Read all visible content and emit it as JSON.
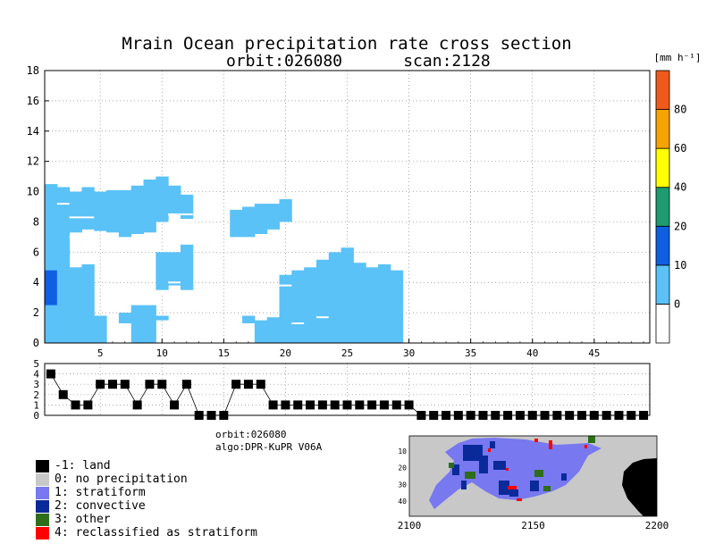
{
  "title": {
    "line1": "Mrain Ocean precipitation rate cross section",
    "line2_left": "orbit:026080",
    "line2_right": "scan:2128"
  },
  "colorbar": {
    "unit_label": "[mm h⁻¹]",
    "bins": [
      {
        "value": -10,
        "color": "#ffffff"
      },
      {
        "value": 0,
        "color": "#5ac2f7"
      },
      {
        "value": 10,
        "color": "#0e5fe2"
      },
      {
        "value": 20,
        "color": "#1e9b70"
      },
      {
        "value": 40,
        "color": "#ffff00"
      },
      {
        "value": 60,
        "color": "#f5a300"
      },
      {
        "value": 80,
        "color": "#ee5a1a"
      }
    ],
    "tick_labels": [
      "0",
      "10",
      "20",
      "40",
      "60",
      "80"
    ]
  },
  "chart_data": [
    {
      "type": "heatmap",
      "name": "precipitation cross section",
      "x_ticks": [
        "5",
        "10",
        "15",
        "20",
        "25",
        "30",
        "35",
        "40",
        "45"
      ],
      "y_ticks": [
        "0",
        "2",
        "4",
        "6",
        "8",
        "10",
        "12",
        "14",
        "16",
        "18"
      ],
      "xlim": [
        0.5,
        49.5
      ],
      "ylim": [
        0,
        18
      ],
      "grid": true,
      "cell_height": 0.25,
      "columns": [
        {
          "x": 1,
          "segments": [
            {
              "from": 0,
              "to": 10.5,
              "cls": 1
            },
            {
              "from": 2.5,
              "to": 4.8,
              "cls": 2
            }
          ]
        },
        {
          "x": 2,
          "segments": [
            {
              "from": 0,
              "to": 10.3,
              "cls": 1
            }
          ]
        },
        {
          "x": 3,
          "segments": [
            {
              "from": 0,
              "to": 5.0,
              "cls": 1
            },
            {
              "from": 7.3,
              "to": 10.0,
              "cls": 1
            }
          ]
        },
        {
          "x": 4,
          "segments": [
            {
              "from": 0,
              "to": 5.2,
              "cls": 1
            },
            {
              "from": 7.5,
              "to": 10.3,
              "cls": 1
            }
          ]
        },
        {
          "x": 5,
          "segments": [
            {
              "from": 0,
              "to": 1.8,
              "cls": 1
            },
            {
              "from": 7.4,
              "to": 10.0,
              "cls": 1
            }
          ]
        },
        {
          "x": 6,
          "segments": [
            {
              "from": 7.3,
              "to": 10.1,
              "cls": 1
            }
          ]
        },
        {
          "x": 7,
          "segments": [
            {
              "from": 1.3,
              "to": 2.0,
              "cls": 1
            },
            {
              "from": 7.0,
              "to": 10.1,
              "cls": 1
            }
          ]
        },
        {
          "x": 8,
          "segments": [
            {
              "from": 0,
              "to": 2.5,
              "cls": 1
            },
            {
              "from": 7.2,
              "to": 10.4,
              "cls": 1
            }
          ]
        },
        {
          "x": 9,
          "segments": [
            {
              "from": 0,
              "to": 2.5,
              "cls": 1
            },
            {
              "from": 7.3,
              "to": 10.8,
              "cls": 1
            }
          ]
        },
        {
          "x": 10,
          "segments": [
            {
              "from": 1.5,
              "to": 1.8,
              "cls": 1
            },
            {
              "from": 3.5,
              "to": 6.0,
              "cls": 1
            },
            {
              "from": 8.0,
              "to": 11.0,
              "cls": 1
            }
          ]
        },
        {
          "x": 11,
          "segments": [
            {
              "from": 3.8,
              "to": 6.0,
              "cls": 1
            },
            {
              "from": 8.5,
              "to": 10.4,
              "cls": 1
            }
          ]
        },
        {
          "x": 12,
          "segments": [
            {
              "from": 3.5,
              "to": 6.5,
              "cls": 1
            },
            {
              "from": 8.2,
              "to": 9.8,
              "cls": 1
            }
          ]
        },
        {
          "x": 16,
          "segments": [
            {
              "from": 7.0,
              "to": 8.8,
              "cls": 1
            }
          ]
        },
        {
          "x": 17,
          "segments": [
            {
              "from": 1.3,
              "to": 1.8,
              "cls": 1
            },
            {
              "from": 7.0,
              "to": 9.0,
              "cls": 1
            }
          ]
        },
        {
          "x": 18,
          "segments": [
            {
              "from": 0,
              "to": 1.5,
              "cls": 1
            },
            {
              "from": 7.2,
              "to": 9.2,
              "cls": 1
            }
          ]
        },
        {
          "x": 19,
          "segments": [
            {
              "from": 0,
              "to": 1.7,
              "cls": 1
            },
            {
              "from": 7.5,
              "to": 9.2,
              "cls": 1
            }
          ]
        },
        {
          "x": 20,
          "segments": [
            {
              "from": 0,
              "to": 4.5,
              "cls": 1
            },
            {
              "from": 8.0,
              "to": 9.5,
              "cls": 1
            }
          ]
        },
        {
          "x": 21,
          "segments": [
            {
              "from": 0,
              "to": 4.8,
              "cls": 1
            }
          ]
        },
        {
          "x": 22,
          "segments": [
            {
              "from": 0,
              "to": 5.0,
              "cls": 1
            }
          ]
        },
        {
          "x": 23,
          "segments": [
            {
              "from": 0,
              "to": 5.5,
              "cls": 1
            }
          ]
        },
        {
          "x": 24,
          "segments": [
            {
              "from": 0,
              "to": 6.0,
              "cls": 1
            }
          ]
        },
        {
          "x": 25,
          "segments": [
            {
              "from": 0,
              "to": 6.3,
              "cls": 1
            }
          ]
        },
        {
          "x": 26,
          "segments": [
            {
              "from": 0,
              "to": 5.3,
              "cls": 1
            }
          ]
        },
        {
          "x": 27,
          "segments": [
            {
              "from": 0,
              "to": 5.0,
              "cls": 1
            }
          ]
        },
        {
          "x": 28,
          "segments": [
            {
              "from": 0,
              "to": 5.2,
              "cls": 1
            }
          ]
        },
        {
          "x": 29,
          "segments": [
            {
              "from": 0,
              "to": 4.8,
              "cls": 1
            }
          ]
        }
      ],
      "gap_lines": [
        {
          "x": 2,
          "y": 9.2,
          "len": 1
        },
        {
          "x": 3,
          "y": 8.3,
          "len": 2
        },
        {
          "x": 3,
          "y": 7.0,
          "len": 1
        },
        {
          "x": 7,
          "y": 4.3,
          "len": 1
        },
        {
          "x": 7,
          "y": 3.7,
          "len": 1
        },
        {
          "x": 8,
          "y": 4.5,
          "len": 2
        },
        {
          "x": 10,
          "y": 3.3,
          "len": 1
        },
        {
          "x": 11,
          "y": 2.7,
          "len": 1
        },
        {
          "x": 11,
          "y": 4.0,
          "len": 1
        },
        {
          "x": 11,
          "y": 8.5,
          "len": 2
        },
        {
          "x": 11,
          "y": 8.0,
          "len": 2
        },
        {
          "x": 12,
          "y": 7.3,
          "len": 1
        },
        {
          "x": 21,
          "y": 1.3,
          "len": 1
        },
        {
          "x": 20,
          "y": 3.8,
          "len": 1
        },
        {
          "x": 23,
          "y": 1.7,
          "len": 1
        }
      ]
    },
    {
      "type": "line",
      "name": "precipitation type per ray",
      "y_ticks": [
        "0",
        "1",
        "2",
        "3",
        "4",
        "5"
      ],
      "ylim": [
        0,
        5
      ],
      "x": [
        1,
        2,
        3,
        4,
        5,
        6,
        7,
        8,
        9,
        10,
        11,
        12,
        13,
        14,
        15,
        16,
        17,
        18,
        19,
        20,
        21,
        22,
        23,
        24,
        25,
        26,
        27,
        28,
        29,
        30,
        31,
        32,
        33,
        34,
        35,
        36,
        37,
        38,
        39,
        40,
        41,
        42,
        43,
        44,
        45,
        46,
        47,
        48,
        49
      ],
      "values": [
        4,
        2,
        1,
        1,
        3,
        3,
        3,
        1,
        3,
        3,
        1,
        3,
        0,
        0,
        0,
        3,
        3,
        3,
        1,
        1,
        1,
        1,
        1,
        1,
        1,
        1,
        1,
        1,
        1,
        1,
        0,
        0,
        0,
        0,
        0,
        0,
        0,
        0,
        0,
        0,
        0,
        0,
        0,
        0,
        0,
        0,
        0,
        0,
        0
      ]
    },
    {
      "type": "heatmap",
      "name": "precipitation type map",
      "x_ticks": [
        "2100",
        "2150",
        "2200"
      ],
      "y_ticks": [
        "10",
        "20",
        "30",
        "40"
      ],
      "xlim": [
        2100,
        2200
      ],
      "ylim": [
        1,
        49
      ]
    }
  ],
  "info": {
    "orbit": "orbit:026080",
    "algo": "algo:DPR-KuPR V06A"
  },
  "legend": [
    {
      "label": "-1: land",
      "color": "#000000"
    },
    {
      "label": "0: no precipitation",
      "color": "#c8c8c8"
    },
    {
      "label": "1: stratiform",
      "color": "#7878f0"
    },
    {
      "label": "2: convective",
      "color": "#0a2a9a"
    },
    {
      "label": "3: other",
      "color": "#2e6e1a"
    },
    {
      "label": "4: reclassified as stratiform",
      "color": "#ff0000"
    }
  ]
}
